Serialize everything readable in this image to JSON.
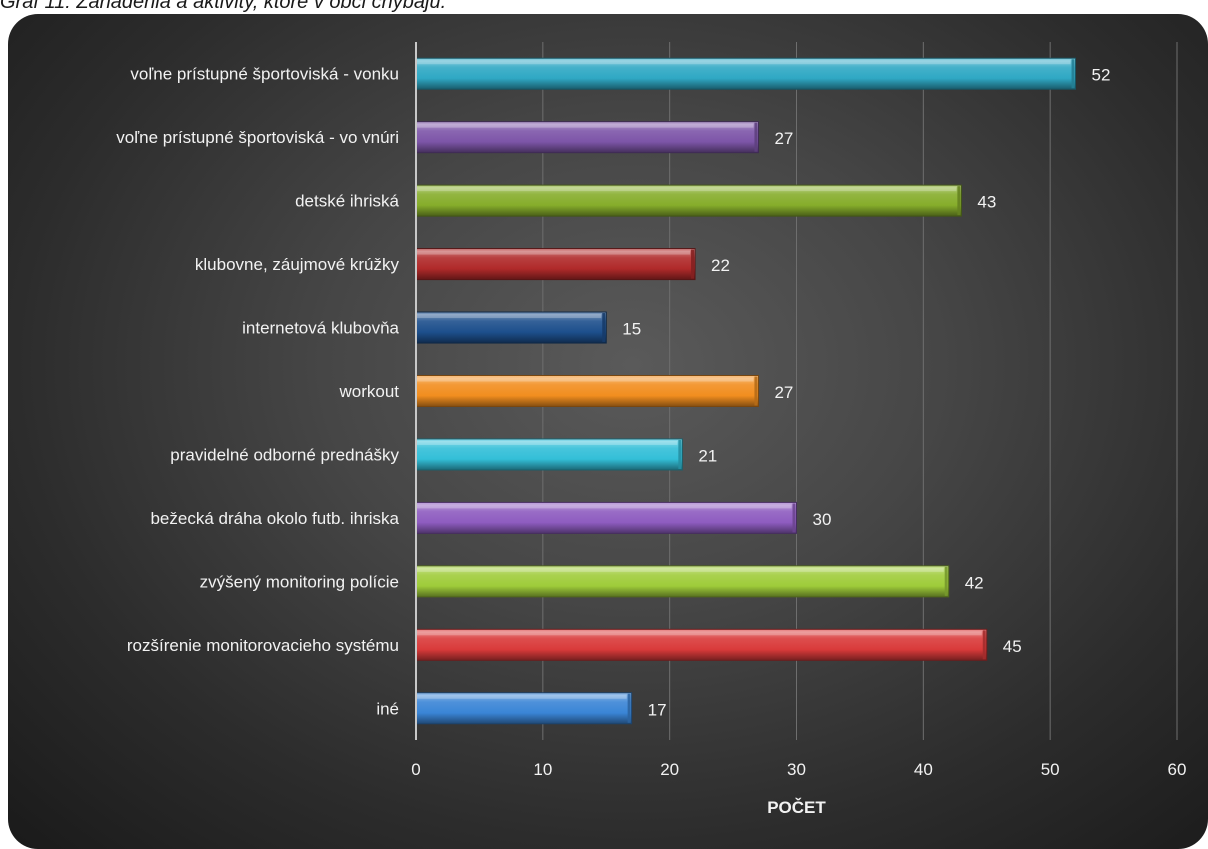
{
  "caption": "Graf 11: Zariadenia a aktivity, ktoré v obci chýbajú.",
  "chart_data": {
    "type": "bar",
    "orientation": "horizontal",
    "title": "",
    "xlabel": "POČET",
    "ylabel": "",
    "xlim": [
      0,
      60
    ],
    "xticks": [
      0,
      10,
      20,
      30,
      40,
      50,
      60
    ],
    "grid": true,
    "legend": "none",
    "categories": [
      "voľne prístupné športoviská - vonku",
      "voľne prístupné športoviská - vo vnúri",
      "detské ihriská",
      "klubovne, záujmové krúžky",
      "internetová klubovňa",
      "workout",
      "pravidelné odborné prednášky",
      "bežecká dráha okolo futb. ihriska",
      "zvýšený monitoring polície",
      "rozšírenie monitorovacieho systému",
      "iné"
    ],
    "values": [
      52,
      27,
      43,
      22,
      15,
      27,
      21,
      30,
      42,
      45,
      17
    ],
    "colors": [
      "#2fa8c4",
      "#7d55a8",
      "#86ad2b",
      "#b02a2a",
      "#1d4f8c",
      "#f28e1f",
      "#33bfd8",
      "#8e5cc0",
      "#9fcc3a",
      "#d93a3a",
      "#3a85d6"
    ],
    "panel_background": "#444444"
  }
}
